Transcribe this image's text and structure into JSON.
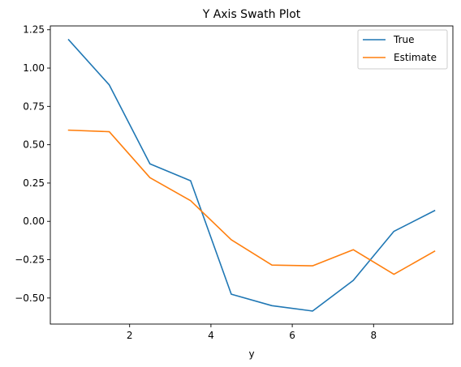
{
  "chart_data": {
    "type": "line",
    "title": "Y Axis Swath Plot",
    "xlabel": "y",
    "ylabel": "",
    "xlim": [
      0.05,
      9.95
    ],
    "ylim": [
      -0.67,
      1.275
    ],
    "x_ticks": [
      2,
      4,
      6,
      8
    ],
    "x_tick_labels": [
      "2",
      "4",
      "6",
      "8"
    ],
    "y_ticks": [
      -0.5,
      -0.25,
      0.0,
      0.25,
      0.5,
      0.75,
      1.0,
      1.25
    ],
    "y_tick_labels": [
      "−0.50",
      "−0.25",
      "0.00",
      "0.25",
      "0.50",
      "0.75",
      "1.00",
      "1.25"
    ],
    "x": [
      0.5,
      1.5,
      2.5,
      3.5,
      4.5,
      5.5,
      6.5,
      7.5,
      8.5,
      9.5
    ],
    "series": [
      {
        "name": "True",
        "color": "#1f77b4",
        "values": [
          1.185,
          0.89,
          0.375,
          0.265,
          -0.475,
          -0.55,
          -0.585,
          -0.385,
          -0.065,
          0.07
        ]
      },
      {
        "name": "Estimate",
        "color": "#ff7f0e",
        "values": [
          0.595,
          0.585,
          0.285,
          0.135,
          -0.12,
          -0.285,
          -0.29,
          -0.185,
          -0.345,
          -0.195
        ]
      }
    ],
    "grid": false,
    "legend_position": "upper right"
  }
}
